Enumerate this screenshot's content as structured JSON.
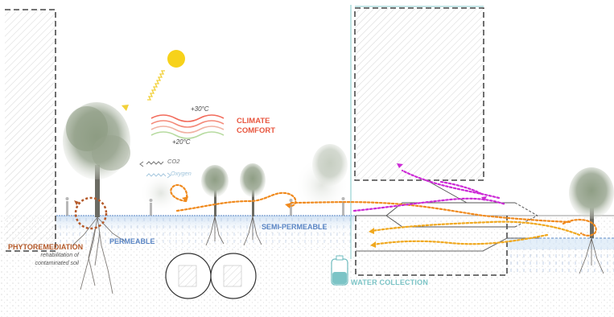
{
  "diagram": {
    "climate_label": "CLIMATE COMFORT",
    "temp_high": "+30°C",
    "temp_low": "+20°C",
    "co2_label": "CO2",
    "oxygen_label": "Oxygen",
    "permeable_label": "PERMEABLE",
    "semi_permeable_label": "SEMI-PERMEABLE",
    "phytoremediation_label": "PHYTOREMEDIATION",
    "phytoremediation_sub": "rehabilitation of contaminated soil",
    "water_collection_label": "WATER COLLECTION"
  },
  "colors": {
    "climate_text": "#e8563f",
    "permeable_text": "#5b86c4",
    "phyto_text": "#b55a2a",
    "water_text": "#7cc4c6",
    "air_flow_arrow": "#f08a1e",
    "water_flow_arrow": "#f0a81e",
    "exhaust_arrow": "#cc2ad6",
    "sun": "#f7d21a"
  },
  "icons": [
    "sun-icon",
    "sun-ray-icon",
    "tree-icon",
    "root-icon",
    "flow-arrow-icon",
    "water-tank-icon",
    "pipe-icon"
  ]
}
